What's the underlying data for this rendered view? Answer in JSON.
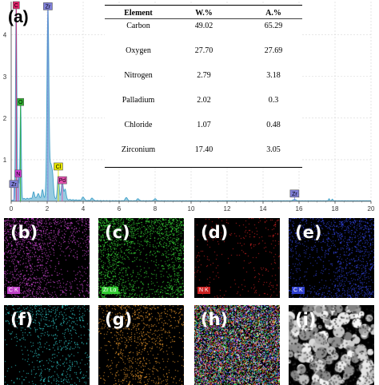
{
  "chart_data": {
    "type": "line",
    "panel_label": "(a)",
    "xlim": [
      0,
      20
    ],
    "ylim": [
      0,
      4.8
    ],
    "x_ticks": [
      "0",
      "2",
      "4",
      "6",
      "8",
      "10",
      "12",
      "14",
      "16",
      "18",
      "20"
    ],
    "y_ticks": [
      "1",
      "2",
      "3",
      "4"
    ],
    "series_color": "#3fa0c8",
    "peak_labels": [
      {
        "text": "C",
        "x": 0.28,
        "y": 4.75,
        "color": "#e3206a"
      },
      {
        "text": "Zr",
        "x": 2.04,
        "y": 4.6,
        "color": "#7f7fd8"
      },
      {
        "text": "O",
        "x": 0.52,
        "y": 2.3,
        "color": "#2fb32f"
      },
      {
        "text": "N",
        "x": 0.39,
        "y": 0.58,
        "color": "#d13ad1"
      },
      {
        "text": "Cl",
        "x": 2.62,
        "y": 0.75,
        "color": "#e6e600"
      },
      {
        "text": "Pd",
        "x": 2.84,
        "y": 0.42,
        "color": "#e64fb0"
      },
      {
        "text": "Zr",
        "x": 0.15,
        "y": 0.33,
        "color": "#7f7fd8"
      },
      {
        "text": "Zr",
        "x": 15.75,
        "y": 0.1,
        "color": "#7f7fd8"
      }
    ],
    "peaks": [
      {
        "center": 0.277,
        "height": 4.75,
        "width": 0.035
      },
      {
        "center": 0.392,
        "height": 0.55,
        "width": 0.04
      },
      {
        "center": 0.525,
        "height": 2.3,
        "width": 0.035
      },
      {
        "center": 2.042,
        "height": 4.6,
        "width": 0.055
      },
      {
        "center": 2.2,
        "height": 0.7,
        "width": 0.05
      },
      {
        "center": 2.3,
        "height": 0.55,
        "width": 0.05
      },
      {
        "center": 2.62,
        "height": 0.55,
        "width": 0.05
      },
      {
        "center": 2.84,
        "height": 0.45,
        "width": 0.05
      },
      {
        "center": 3.0,
        "height": 0.25,
        "width": 0.05
      },
      {
        "center": 1.25,
        "height": 0.15,
        "width": 0.05
      },
      {
        "center": 1.5,
        "height": 0.12,
        "width": 0.05
      },
      {
        "center": 1.74,
        "height": 0.2,
        "width": 0.05
      },
      {
        "center": 4.0,
        "height": 0.08,
        "width": 0.06
      },
      {
        "center": 4.5,
        "height": 0.06,
        "width": 0.06
      },
      {
        "center": 6.4,
        "height": 0.08,
        "width": 0.06
      },
      {
        "center": 7.05,
        "height": 0.05,
        "width": 0.06
      },
      {
        "center": 8.0,
        "height": 0.05,
        "width": 0.06
      },
      {
        "center": 15.75,
        "height": 0.03,
        "width": 0.08
      },
      {
        "center": 17.67,
        "height": 0.05,
        "width": 0.03
      },
      {
        "center": 17.85,
        "height": 0.04,
        "width": 0.03
      }
    ],
    "table": {
      "headers": [
        "Element",
        "W.%",
        "A.%"
      ],
      "rows": [
        [
          "Carbon",
          "49.02",
          "65.29"
        ],
        [
          "Oxygen",
          "27.70",
          "27.69"
        ],
        [
          "Nitrogen",
          "2.79",
          "3.18"
        ],
        [
          "Palladium",
          "2.02",
          "0.3"
        ],
        [
          "Chloride",
          "1.07",
          "0.48"
        ],
        [
          "Zirconium",
          "17.40",
          "3.05"
        ]
      ]
    }
  },
  "maps": [
    {
      "letter": "(b)",
      "label": "C K",
      "color": "#c040c8",
      "density": 0.55,
      "label_bg": "#c040c8"
    },
    {
      "letter": "(c)",
      "label": "Zr Lα",
      "color": "#33cc33",
      "density": 0.7,
      "label_bg": "#33cc33"
    },
    {
      "letter": "(d)",
      "label": "N K",
      "color": "#cc2020",
      "density": 0.12,
      "label_bg": "#cc2020"
    },
    {
      "letter": "(e)",
      "label": "C K",
      "color": "#2e3fd0",
      "density": 0.5,
      "label_bg": "#2e3fd0"
    },
    {
      "letter": "(f)",
      "label": "",
      "color": "#2fc8c8",
      "density": 0.3,
      "label_bg": ""
    },
    {
      "letter": "(g)",
      "label": "",
      "color": "#e0902a",
      "density": 0.35,
      "label_bg": ""
    },
    {
      "letter": "(h)",
      "label": "",
      "color": "mixed",
      "density": 0.85,
      "label_bg": ""
    },
    {
      "letter": "(i)",
      "label": "",
      "color": "sem",
      "density": 0.6,
      "label_bg": ""
    }
  ]
}
